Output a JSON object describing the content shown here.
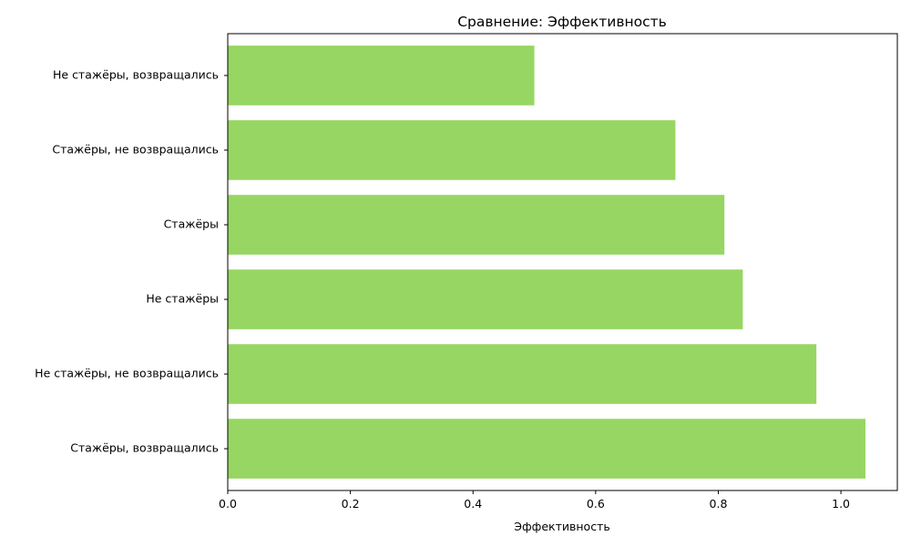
{
  "chart_data": {
    "type": "bar",
    "orientation": "horizontal",
    "title": "Сравнение: Эффективность",
    "xlabel": "Эффективность",
    "ylabel": "",
    "categories": [
      "Не стажёры, возвращались",
      "Стажёры, не возвращались",
      "Стажёры",
      "Не стажёры",
      "Не стажёры, не возвращались",
      "Стажёры, возвращались"
    ],
    "values": [
      0.5,
      0.73,
      0.81,
      0.84,
      0.96,
      1.04
    ],
    "xlim": [
      0,
      1.092
    ],
    "xticks": [
      0.0,
      0.2,
      0.4,
      0.6,
      0.8,
      1.0
    ],
    "xtick_labels": [
      "0.0",
      "0.2",
      "0.4",
      "0.6",
      "0.8",
      "1.0"
    ],
    "bar_color": "#97d662",
    "grid": false,
    "legend": "none"
  }
}
